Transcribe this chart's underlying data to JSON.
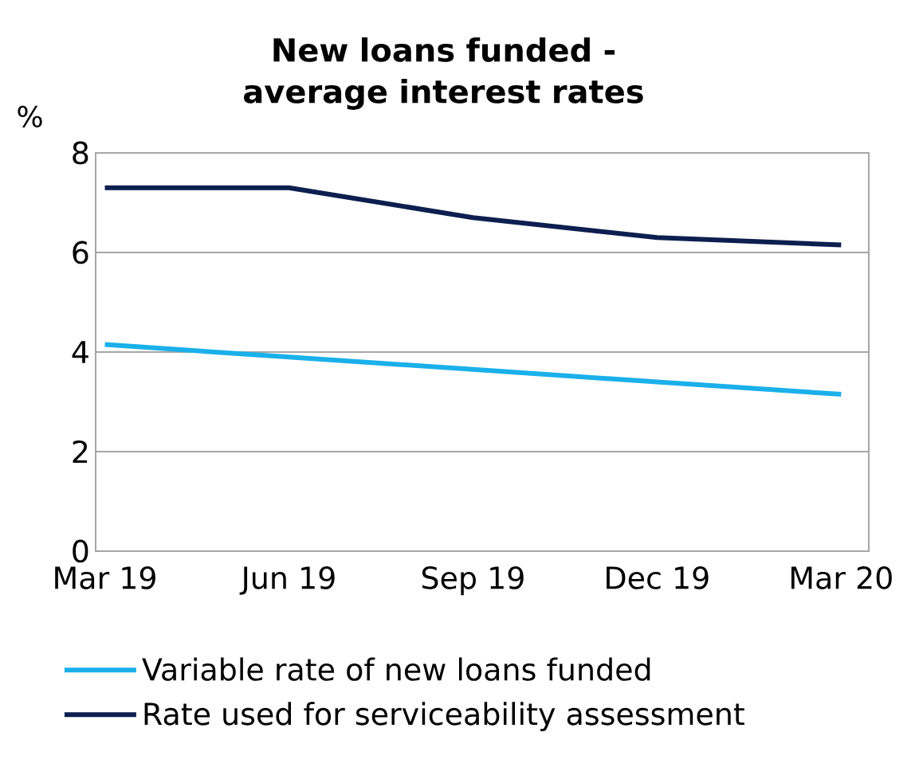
{
  "chart_data": {
    "type": "line",
    "title": "New loans funded - average interest rates",
    "ylabel": "%",
    "categories": [
      "Mar 19",
      "Jun 19",
      "Sep 19",
      "Dec 19",
      "Mar 20"
    ],
    "series": [
      {
        "name": "Variable rate of new loans funded",
        "color": "#1ab0ea",
        "values": [
          4.15,
          3.9,
          3.65,
          3.4,
          3.15
        ]
      },
      {
        "name": "Rate used for serviceability assessment",
        "color": "#0d1f4f",
        "values": [
          7.3,
          7.3,
          6.7,
          6.3,
          6.15
        ]
      }
    ],
    "ylim": [
      0,
      8
    ],
    "yticks": [
      0,
      2,
      4,
      6,
      8
    ],
    "grid": "y",
    "legend": "bottom",
    "line_style": "solid",
    "marker": "none"
  }
}
